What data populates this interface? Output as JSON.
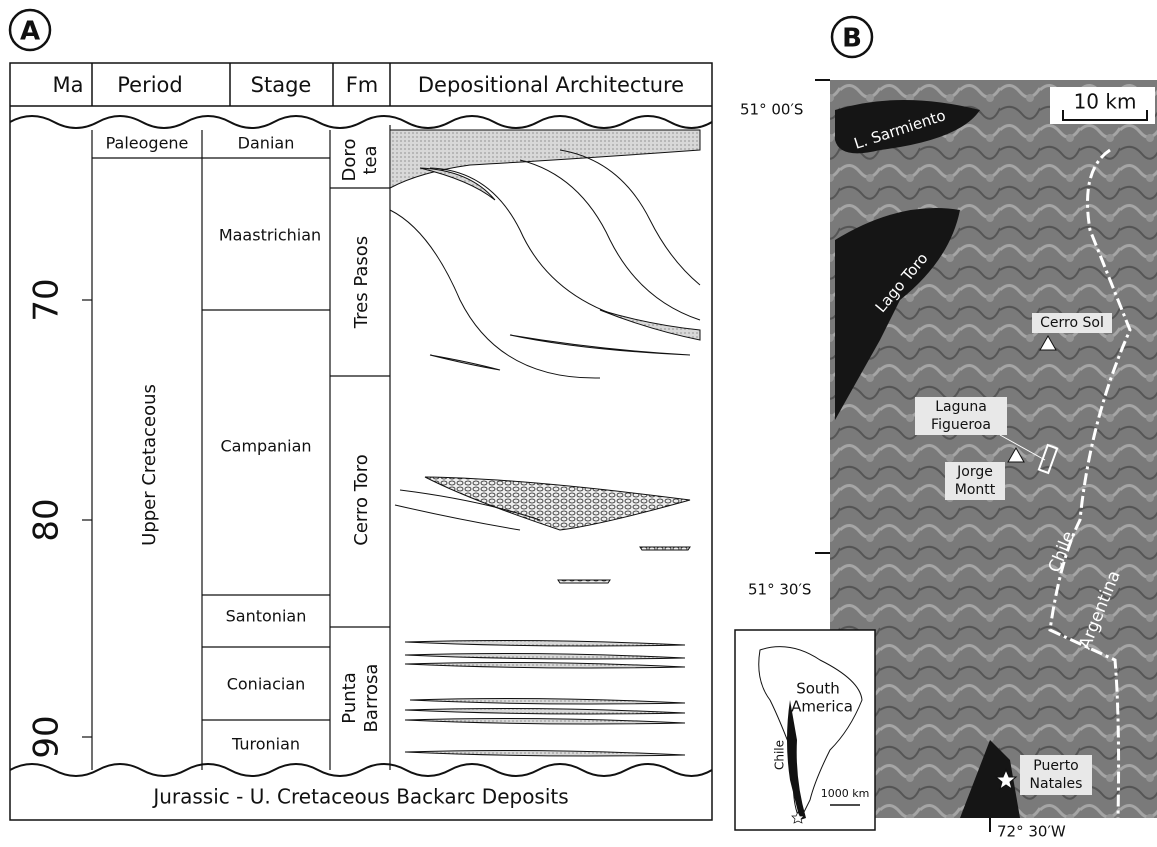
{
  "panel_a": {
    "label": "A",
    "headers": [
      "Ma",
      "Period",
      "Stage",
      "Fm",
      "Depositional Architecture"
    ],
    "ma_ticks": [
      "70",
      "80",
      "90"
    ],
    "periods": [
      "Paleogene",
      "Upper Cretaceous"
    ],
    "stages": [
      "Danian",
      "Maastrichian",
      "Campanian",
      "Santonian",
      "Coniacian",
      "Turonian"
    ],
    "formations": [
      [
        "Doro",
        "tea"
      ],
      "Tres Pasos",
      "Cerro Toro",
      [
        "Punta",
        "Barrosa"
      ]
    ],
    "basement": "Jurassic - U. Cretaceous Backarc Deposits"
  },
  "panel_b": {
    "label": "B",
    "lat_labels": [
      "51° 00′S",
      "51° 30′S"
    ],
    "lon_label": "72° 30′W",
    "scale": "10 km",
    "places": [
      "L. Sarmiento",
      "Lago Toro",
      "Cerro Sol",
      [
        "Laguna",
        "Figueroa"
      ],
      [
        "Jorge",
        "Montt"
      ],
      "Chile",
      "Argentina",
      [
        "Puerto",
        "Natales"
      ]
    ],
    "inset": {
      "continent": [
        "South",
        "America"
      ],
      "country": "Chile",
      "scale": "1000 km"
    }
  }
}
